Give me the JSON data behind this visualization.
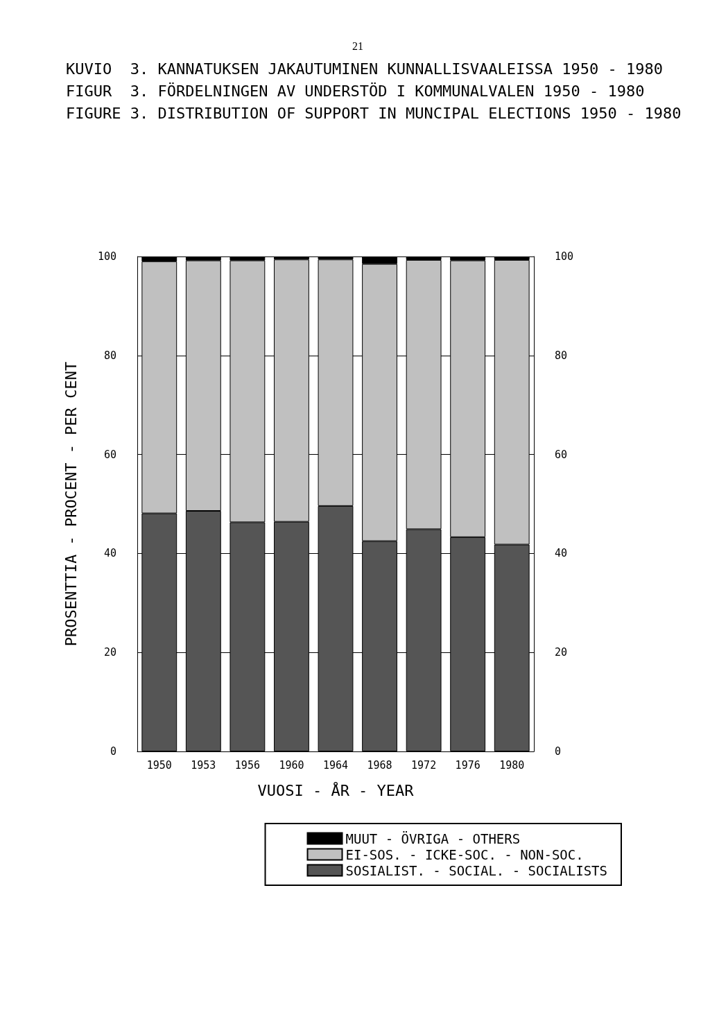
{
  "chart_data": {
    "type": "bar",
    "stacked": true,
    "title": "KUVIO  3. KANNATUKSEN JAKAUTUMINEN KUNNALLISVAALEISSA 1950 - 1980\nFIGUR  3. FÖRDELNINGEN AV UNDERSTÖD I KOMMUNALVALEN 1950 - 1980\nFIGURE 3. DISTRIBUTION OF SUPPORT IN MUNCIPAL ELECTIONS 1950 - 1980",
    "annotations": [
      "21"
    ],
    "xlabel": "VUOSI - ÅR - YEAR",
    "ylabel": "PROSENTTIA - PROCENT - PER CENT",
    "categories": [
      "1950",
      "1953",
      "1956",
      "1960",
      "1964",
      "1968",
      "1972",
      "1976",
      "1980"
    ],
    "series": [
      {
        "name": "SOSIALIST. - SOCIAL. - SOCIALISTS",
        "color": "#555555",
        "values": [
          48.1,
          48.6,
          46.3,
          46.4,
          49.6,
          42.5,
          44.9,
          43.3,
          41.8
        ]
      },
      {
        "name": "EI-SOS. - ICKE-SOC. - NON-SOC.",
        "color": "#c0c0c0",
        "values": [
          50.9,
          50.6,
          52.9,
          53.0,
          49.8,
          56.0,
          54.4,
          55.9,
          57.5
        ]
      },
      {
        "name": "MUUT - ÖVRIGA - OTHERS",
        "color": "#000000",
        "values": [
          1.0,
          0.8,
          0.8,
          0.6,
          0.6,
          1.5,
          0.7,
          0.8,
          0.7
        ]
      }
    ],
    "ylim": [
      0,
      100
    ],
    "yticks": [
      0,
      20,
      40,
      60,
      80,
      100
    ],
    "y2lim": [
      0,
      100
    ],
    "y2ticks": [
      0,
      20,
      40,
      60,
      80,
      100
    ],
    "grid": "y",
    "legend": "bottom right"
  }
}
